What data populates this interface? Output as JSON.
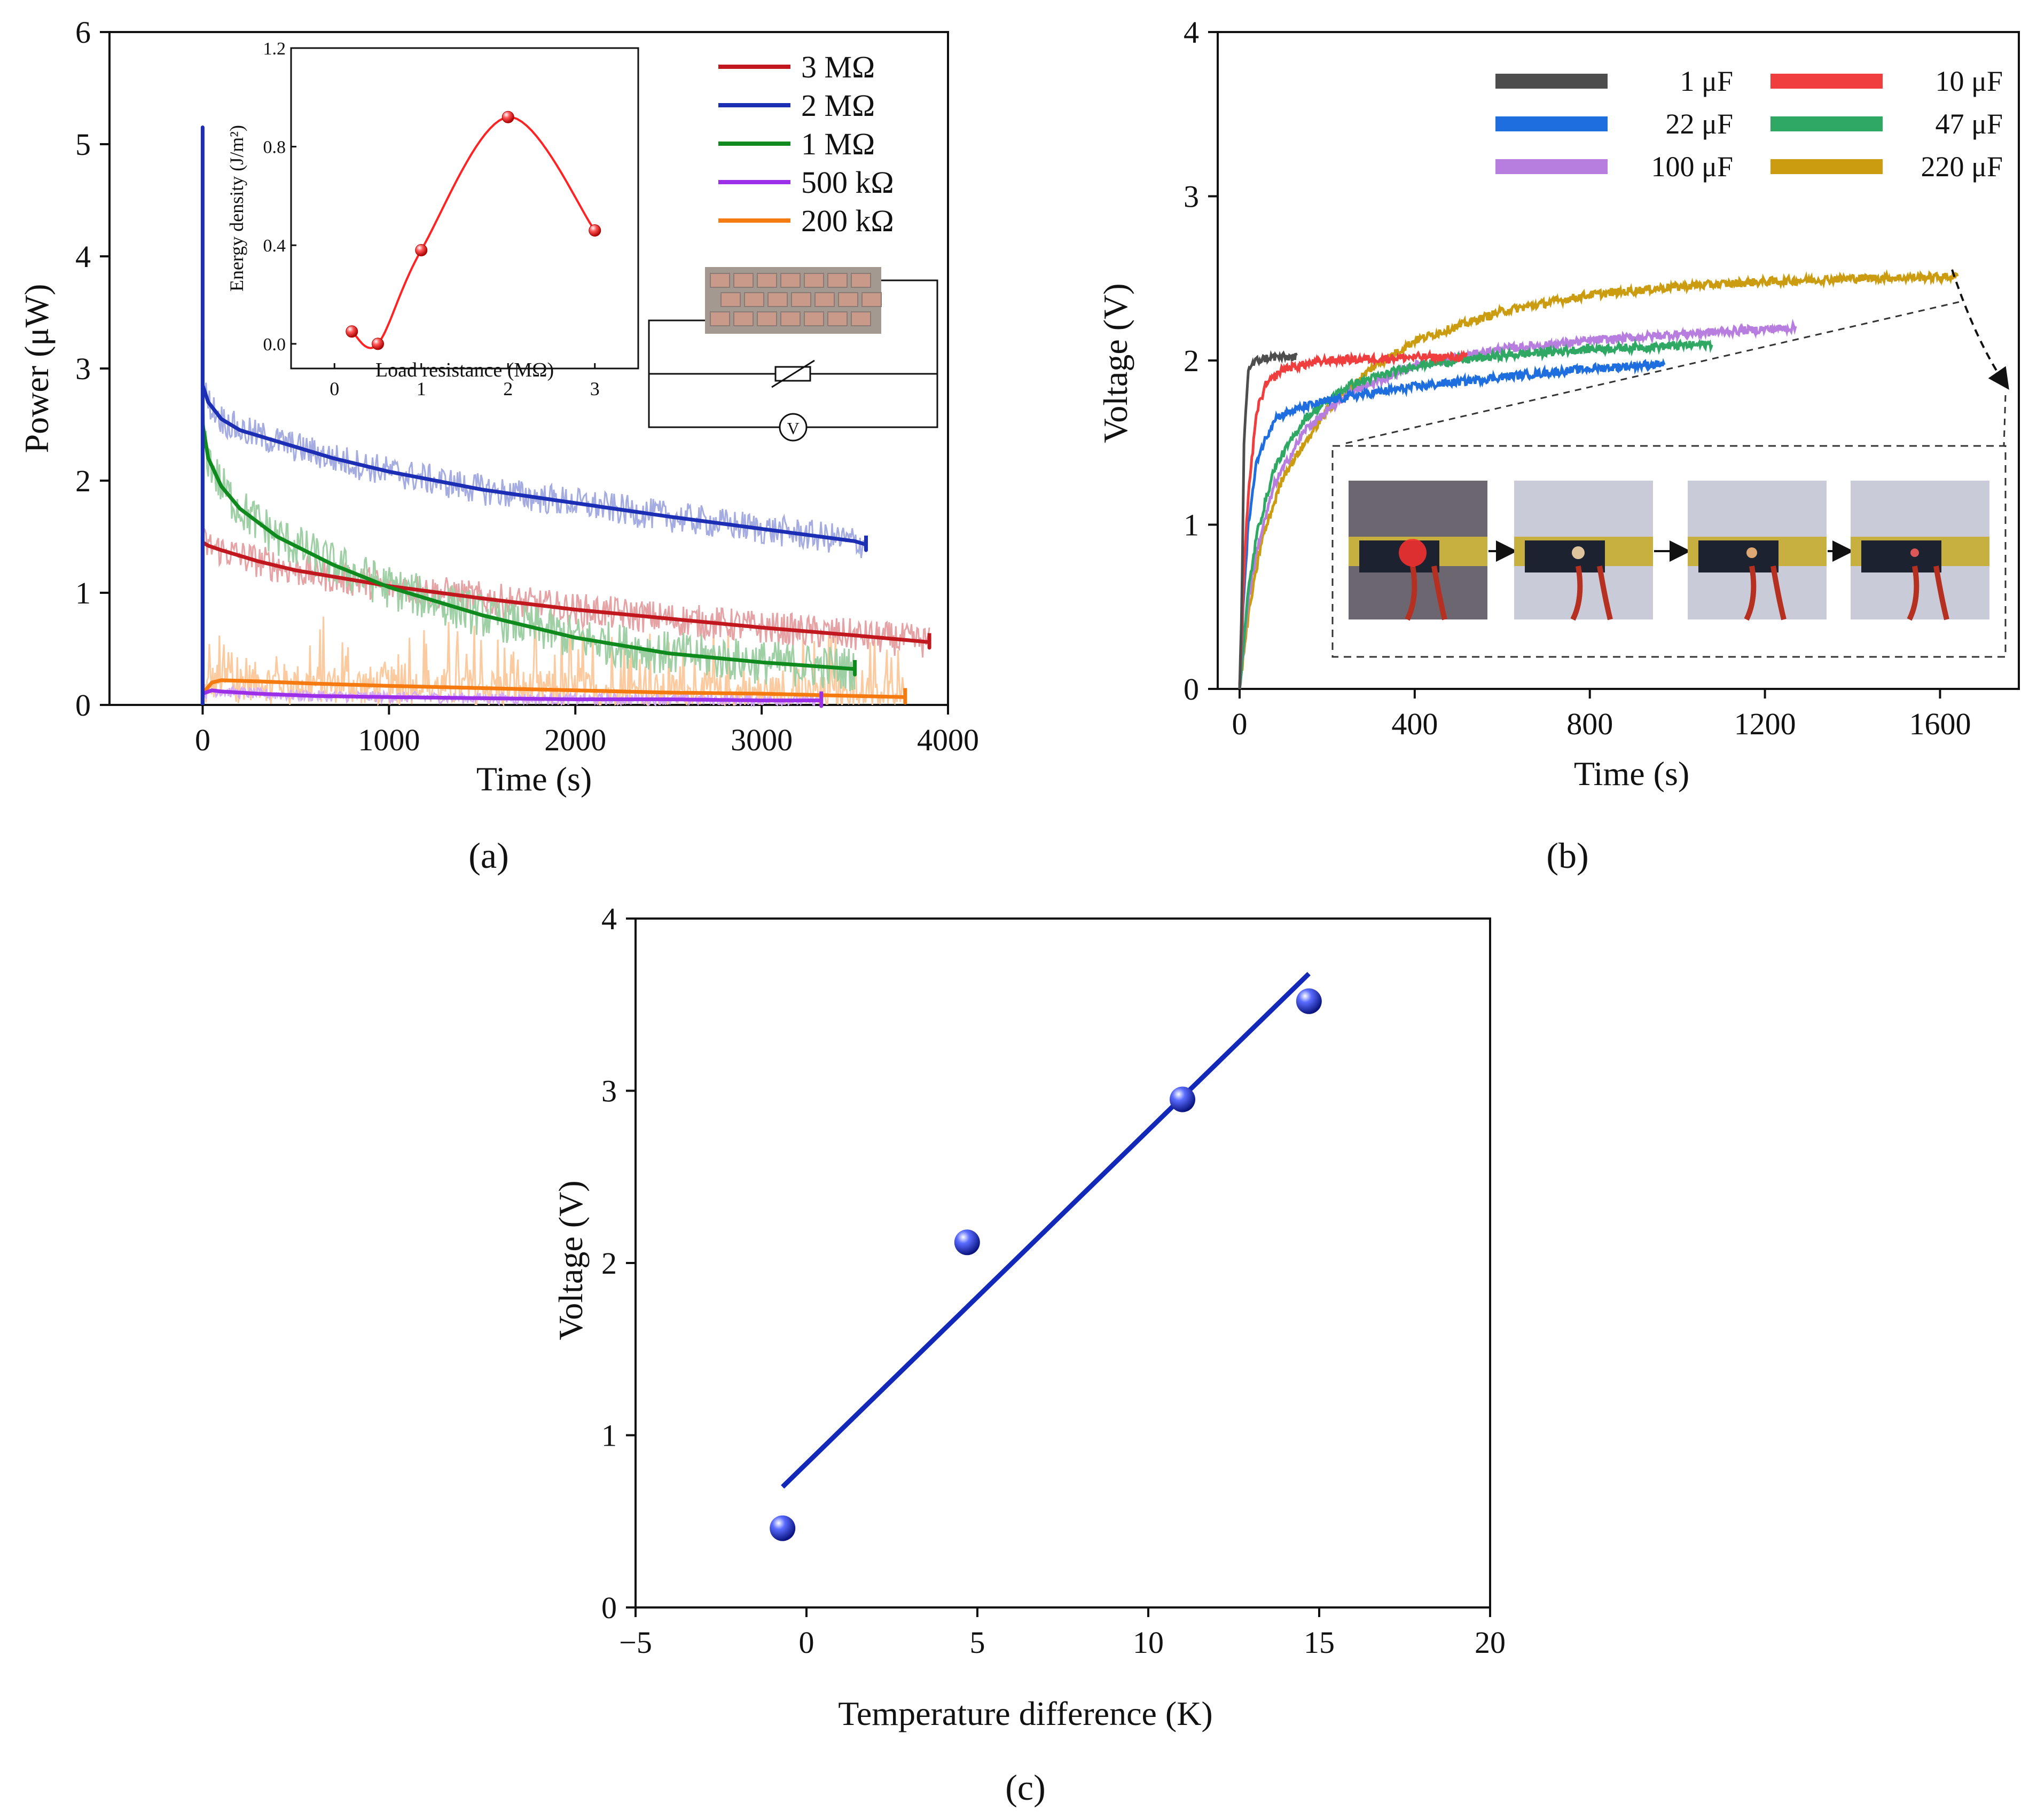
{
  "captions": {
    "a": "(a)",
    "b": "(b)",
    "c": "(c)"
  },
  "panel_a_extra": {
    "inset_xlabel": "Load resistance (MΩ)",
    "inset_ylabel": "Energy density (J/m²)",
    "circuit_meter_label": "V"
  },
  "colors": {
    "r3M": "#c0181e",
    "r2M": "#1c2fb4",
    "r1M": "#0f8a1f",
    "r500k": "#9b30e8",
    "r200k": "#f57a10",
    "c1": "#4d4d4d",
    "c10": "#f03d3d",
    "c22": "#1e6ee0",
    "c47": "#2ea863",
    "c100": "#b77ee0",
    "c220": "#cc9c10",
    "fit": "#1228b8",
    "inset_curve": "#ff2222"
  },
  "chart_data": [
    {
      "id": "a",
      "type": "line",
      "title": "",
      "xlabel": "Time (s)",
      "ylabel": "Power (μW)",
      "xlim": [
        -500,
        4000
      ],
      "ylim": [
        0,
        6
      ],
      "xticks": [
        0,
        1000,
        2000,
        3000,
        4000
      ],
      "yticks": [
        0,
        1,
        2,
        3,
        4,
        5,
        6
      ],
      "legend_position": "top-right",
      "series": [
        {
          "name": "3 MΩ",
          "color": "#c0181e",
          "spike": 1.5,
          "x": [
            0,
            30,
            100,
            300,
            500,
            1000,
            1500,
            2000,
            2500,
            3000,
            3500,
            3900
          ],
          "y": [
            1.45,
            1.42,
            1.38,
            1.28,
            1.2,
            1.06,
            0.95,
            0.85,
            0.77,
            0.69,
            0.62,
            0.56
          ]
        },
        {
          "name": "2 MΩ",
          "color": "#1c2fb4",
          "spike": 5.15,
          "x": [
            0,
            30,
            100,
            200,
            400,
            700,
            1000,
            1500,
            2000,
            2500,
            3000,
            3500,
            3560
          ],
          "y": [
            2.85,
            2.7,
            2.55,
            2.45,
            2.35,
            2.2,
            2.08,
            1.92,
            1.8,
            1.68,
            1.57,
            1.46,
            1.43
          ]
        },
        {
          "name": "1 MΩ",
          "color": "#0f8a1f",
          "spike": 3.25,
          "x": [
            0,
            30,
            100,
            200,
            400,
            700,
            1000,
            1500,
            2000,
            2500,
            3000,
            3500
          ],
          "y": [
            2.5,
            2.2,
            1.95,
            1.75,
            1.5,
            1.25,
            1.05,
            0.8,
            0.6,
            0.46,
            0.38,
            0.32
          ]
        },
        {
          "name": "500 kΩ",
          "color": "#9b30e8",
          "spike": 0.3,
          "x": [
            0,
            50,
            100,
            300,
            600,
            1000,
            1500,
            2000,
            2500,
            3000,
            3320
          ],
          "y": [
            0.1,
            0.13,
            0.12,
            0.1,
            0.08,
            0.07,
            0.06,
            0.05,
            0.05,
            0.04,
            0.04
          ]
        },
        {
          "name": "200 kΩ",
          "color": "#f57a10",
          "spike": 0.25,
          "x": [
            0,
            50,
            100,
            300,
            600,
            1000,
            1500,
            2000,
            2500,
            3000,
            3500,
            3770
          ],
          "y": [
            0.1,
            0.2,
            0.22,
            0.21,
            0.19,
            0.17,
            0.15,
            0.13,
            0.11,
            0.1,
            0.08,
            0.07
          ]
        }
      ],
      "inset": {
        "type": "scatter",
        "xlabel": "Load resistance (MΩ)",
        "ylabel": "Energy density (J/m²)",
        "xlim": [
          -0.5,
          3.5
        ],
        "ylim": [
          -0.1,
          1.2
        ],
        "xticks": [
          0,
          1,
          2,
          3
        ],
        "yticks": [
          0.0,
          0.4,
          0.8,
          1.2
        ],
        "x": [
          0.2,
          0.5,
          1,
          2,
          3
        ],
        "y": [
          0.05,
          0.0,
          0.38,
          0.92,
          0.46
        ]
      }
    },
    {
      "id": "b",
      "type": "line",
      "title": "",
      "xlabel": "Time (s)",
      "ylabel": "Voltage (V)",
      "xlim": [
        -50,
        1780
      ],
      "ylim": [
        0,
        4
      ],
      "xticks": [
        0,
        400,
        800,
        1200,
        1600
      ],
      "yticks": [
        0,
        1,
        2,
        3,
        4
      ],
      "legend_position": "top-right",
      "series": [
        {
          "name": "1 μF",
          "color": "#4d4d4d",
          "x": [
            0,
            5,
            10,
            20,
            40,
            70,
            100,
            130
          ],
          "y": [
            0,
            0.5,
            1.5,
            1.95,
            2.0,
            2.02,
            2.02,
            2.02
          ]
        },
        {
          "name": "10 μF",
          "color": "#f03d3d",
          "x": [
            0,
            10,
            20,
            40,
            60,
            100,
            200,
            300,
            400,
            520
          ],
          "y": [
            0,
            0.7,
            1.2,
            1.7,
            1.85,
            1.95,
            2.0,
            2.01,
            2.02,
            2.02
          ]
        },
        {
          "name": "22 μF",
          "color": "#1e6ee0",
          "x": [
            0,
            10,
            20,
            40,
            80,
            150,
            250,
            400,
            600,
            800,
            970
          ],
          "y": [
            0,
            0.6,
            1.0,
            1.4,
            1.65,
            1.72,
            1.78,
            1.84,
            1.9,
            1.95,
            1.98
          ]
        },
        {
          "name": "47 μF",
          "color": "#2ea863",
          "x": [
            0,
            20,
            40,
            80,
            150,
            250,
            400,
            600,
            800,
            1000,
            1080
          ],
          "y": [
            0,
            0.6,
            0.95,
            1.35,
            1.65,
            1.85,
            1.97,
            2.03,
            2.07,
            2.09,
            2.1
          ]
        },
        {
          "name": "100 μF",
          "color": "#b77ee0",
          "x": [
            0,
            20,
            40,
            80,
            150,
            250,
            400,
            600,
            800,
            1000,
            1200,
            1270
          ],
          "y": [
            0,
            0.55,
            0.85,
            1.25,
            1.58,
            1.8,
            1.97,
            2.07,
            2.12,
            2.16,
            2.19,
            2.2
          ]
        },
        {
          "name": "220 μF",
          "color": "#cc9c10",
          "x": [
            0,
            20,
            50,
            100,
            200,
            300,
            400,
            600,
            800,
            1000,
            1200,
            1400,
            1640
          ],
          "y": [
            0,
            0.45,
            0.9,
            1.3,
            1.7,
            1.95,
            2.12,
            2.3,
            2.4,
            2.45,
            2.48,
            2.5,
            2.51
          ]
        }
      ]
    },
    {
      "id": "c",
      "type": "scatter",
      "title": "",
      "xlabel": "Temperature difference (K)",
      "ylabel": "Voltage (V)",
      "xlim": [
        -5,
        20
      ],
      "ylim": [
        0,
        4
      ],
      "xticks": [
        -5,
        0,
        5,
        10,
        15,
        20
      ],
      "yticks": [
        0,
        1,
        2,
        3,
        4
      ],
      "tick_labels_x": [
        "−5",
        "0",
        "5",
        "10",
        "15",
        "20"
      ],
      "series": [
        {
          "name": "",
          "color": "#1228b8",
          "x": [
            -0.7,
            4.7,
            11.0,
            14.7
          ],
          "y": [
            0.46,
            2.12,
            2.95,
            3.52
          ]
        }
      ],
      "fit_line": {
        "x": [
          -0.7,
          14.7
        ],
        "y": [
          0.7,
          3.68
        ]
      }
    }
  ]
}
